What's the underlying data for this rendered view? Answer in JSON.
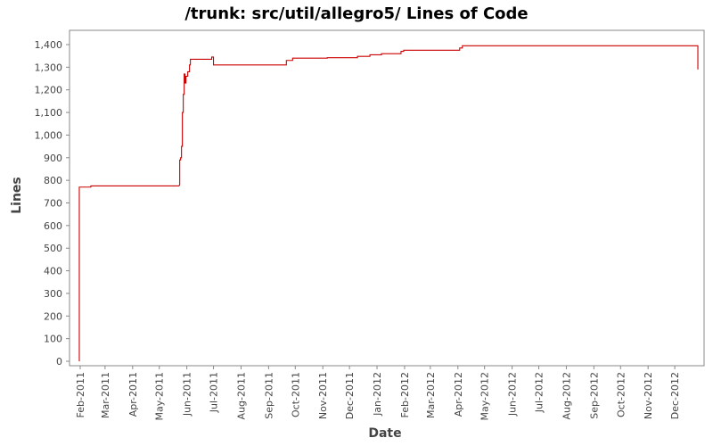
{
  "chart_data": {
    "type": "line",
    "title": "/trunk: src/util/allegro5/ Lines of Code",
    "xlabel": "Date",
    "ylabel": "Lines",
    "x_type": "date",
    "xlim": [
      "2011-01-20",
      "2013-01-03"
    ],
    "ylim": [
      0,
      1450
    ],
    "y_ticks": [
      0,
      100,
      200,
      300,
      400,
      500,
      600,
      700,
      800,
      900,
      1000,
      1100,
      1200,
      1300,
      1400
    ],
    "y_tick_labels": [
      "0",
      "100",
      "200",
      "300",
      "400",
      "500",
      "600",
      "700",
      "800",
      "900",
      "1,000",
      "1,100",
      "1,200",
      "1,300",
      "1,400"
    ],
    "x_ticks": [
      "2011-02-01",
      "2011-03-01",
      "2011-04-01",
      "2011-05-01",
      "2011-06-01",
      "2011-07-01",
      "2011-08-01",
      "2011-09-01",
      "2011-10-01",
      "2011-11-01",
      "2011-12-01",
      "2012-01-01",
      "2012-02-01",
      "2012-03-01",
      "2012-04-01",
      "2012-05-01",
      "2012-06-01",
      "2012-07-01",
      "2012-08-01",
      "2012-09-01",
      "2012-10-01",
      "2012-11-01",
      "2012-12-01"
    ],
    "x_tick_labels": [
      "Feb-2011",
      "Mar-2011",
      "Apr-2011",
      "May-2011",
      "Jun-2011",
      "Jul-2011",
      "Aug-2011",
      "Sep-2011",
      "Oct-2011",
      "Nov-2011",
      "Dec-2011",
      "Jan-2012",
      "Feb-2012",
      "Mar-2012",
      "Apr-2012",
      "May-2012",
      "Jun-2012",
      "Jul-2012",
      "Aug-2012",
      "Sep-2012",
      "Oct-2012",
      "Nov-2012",
      "Dec-2012"
    ],
    "grid": false,
    "colors": {
      "line": "#cc0000",
      "frame": "#888888",
      "background": "#ffffff"
    },
    "series": [
      {
        "name": "",
        "points": [
          [
            "2011-01-31",
            0
          ],
          [
            "2011-01-31",
            770
          ],
          [
            "2011-02-13",
            770
          ],
          [
            "2011-02-13",
            775
          ],
          [
            "2011-05-23",
            775
          ],
          [
            "2011-05-24",
            780
          ],
          [
            "2011-05-24",
            890
          ],
          [
            "2011-05-25",
            890
          ],
          [
            "2011-05-25",
            900
          ],
          [
            "2011-05-26",
            900
          ],
          [
            "2011-05-26",
            950
          ],
          [
            "2011-05-27",
            950
          ],
          [
            "2011-05-27",
            1100
          ],
          [
            "2011-05-28",
            1100
          ],
          [
            "2011-05-28",
            1180
          ],
          [
            "2011-05-29",
            1180
          ],
          [
            "2011-05-29",
            1270
          ],
          [
            "2011-05-30",
            1270
          ],
          [
            "2011-05-30",
            1230
          ],
          [
            "2011-05-31",
            1230
          ],
          [
            "2011-05-31",
            1260
          ],
          [
            "2011-06-02",
            1260
          ],
          [
            "2011-06-02",
            1280
          ],
          [
            "2011-06-04",
            1280
          ],
          [
            "2011-06-04",
            1310
          ],
          [
            "2011-06-05",
            1310
          ],
          [
            "2011-06-05",
            1335
          ],
          [
            "2011-06-29",
            1335
          ],
          [
            "2011-06-29",
            1345
          ],
          [
            "2011-07-01",
            1345
          ],
          [
            "2011-07-01",
            1310
          ],
          [
            "2011-09-21",
            1310
          ],
          [
            "2011-09-21",
            1330
          ],
          [
            "2011-09-28",
            1330
          ],
          [
            "2011-09-28",
            1340
          ],
          [
            "2011-11-06",
            1340
          ],
          [
            "2011-11-06",
            1342
          ],
          [
            "2011-12-10",
            1342
          ],
          [
            "2011-12-10",
            1348
          ],
          [
            "2011-12-24",
            1348
          ],
          [
            "2011-12-24",
            1355
          ],
          [
            "2012-01-06",
            1355
          ],
          [
            "2012-01-06",
            1360
          ],
          [
            "2012-01-28",
            1360
          ],
          [
            "2012-01-28",
            1370
          ],
          [
            "2012-01-31",
            1370
          ],
          [
            "2012-01-31",
            1375
          ],
          [
            "2012-04-03",
            1375
          ],
          [
            "2012-04-03",
            1385
          ],
          [
            "2012-04-06",
            1385
          ],
          [
            "2012-04-06",
            1395
          ],
          [
            "2012-12-27",
            1395
          ],
          [
            "2012-12-27",
            1290
          ]
        ]
      }
    ]
  }
}
